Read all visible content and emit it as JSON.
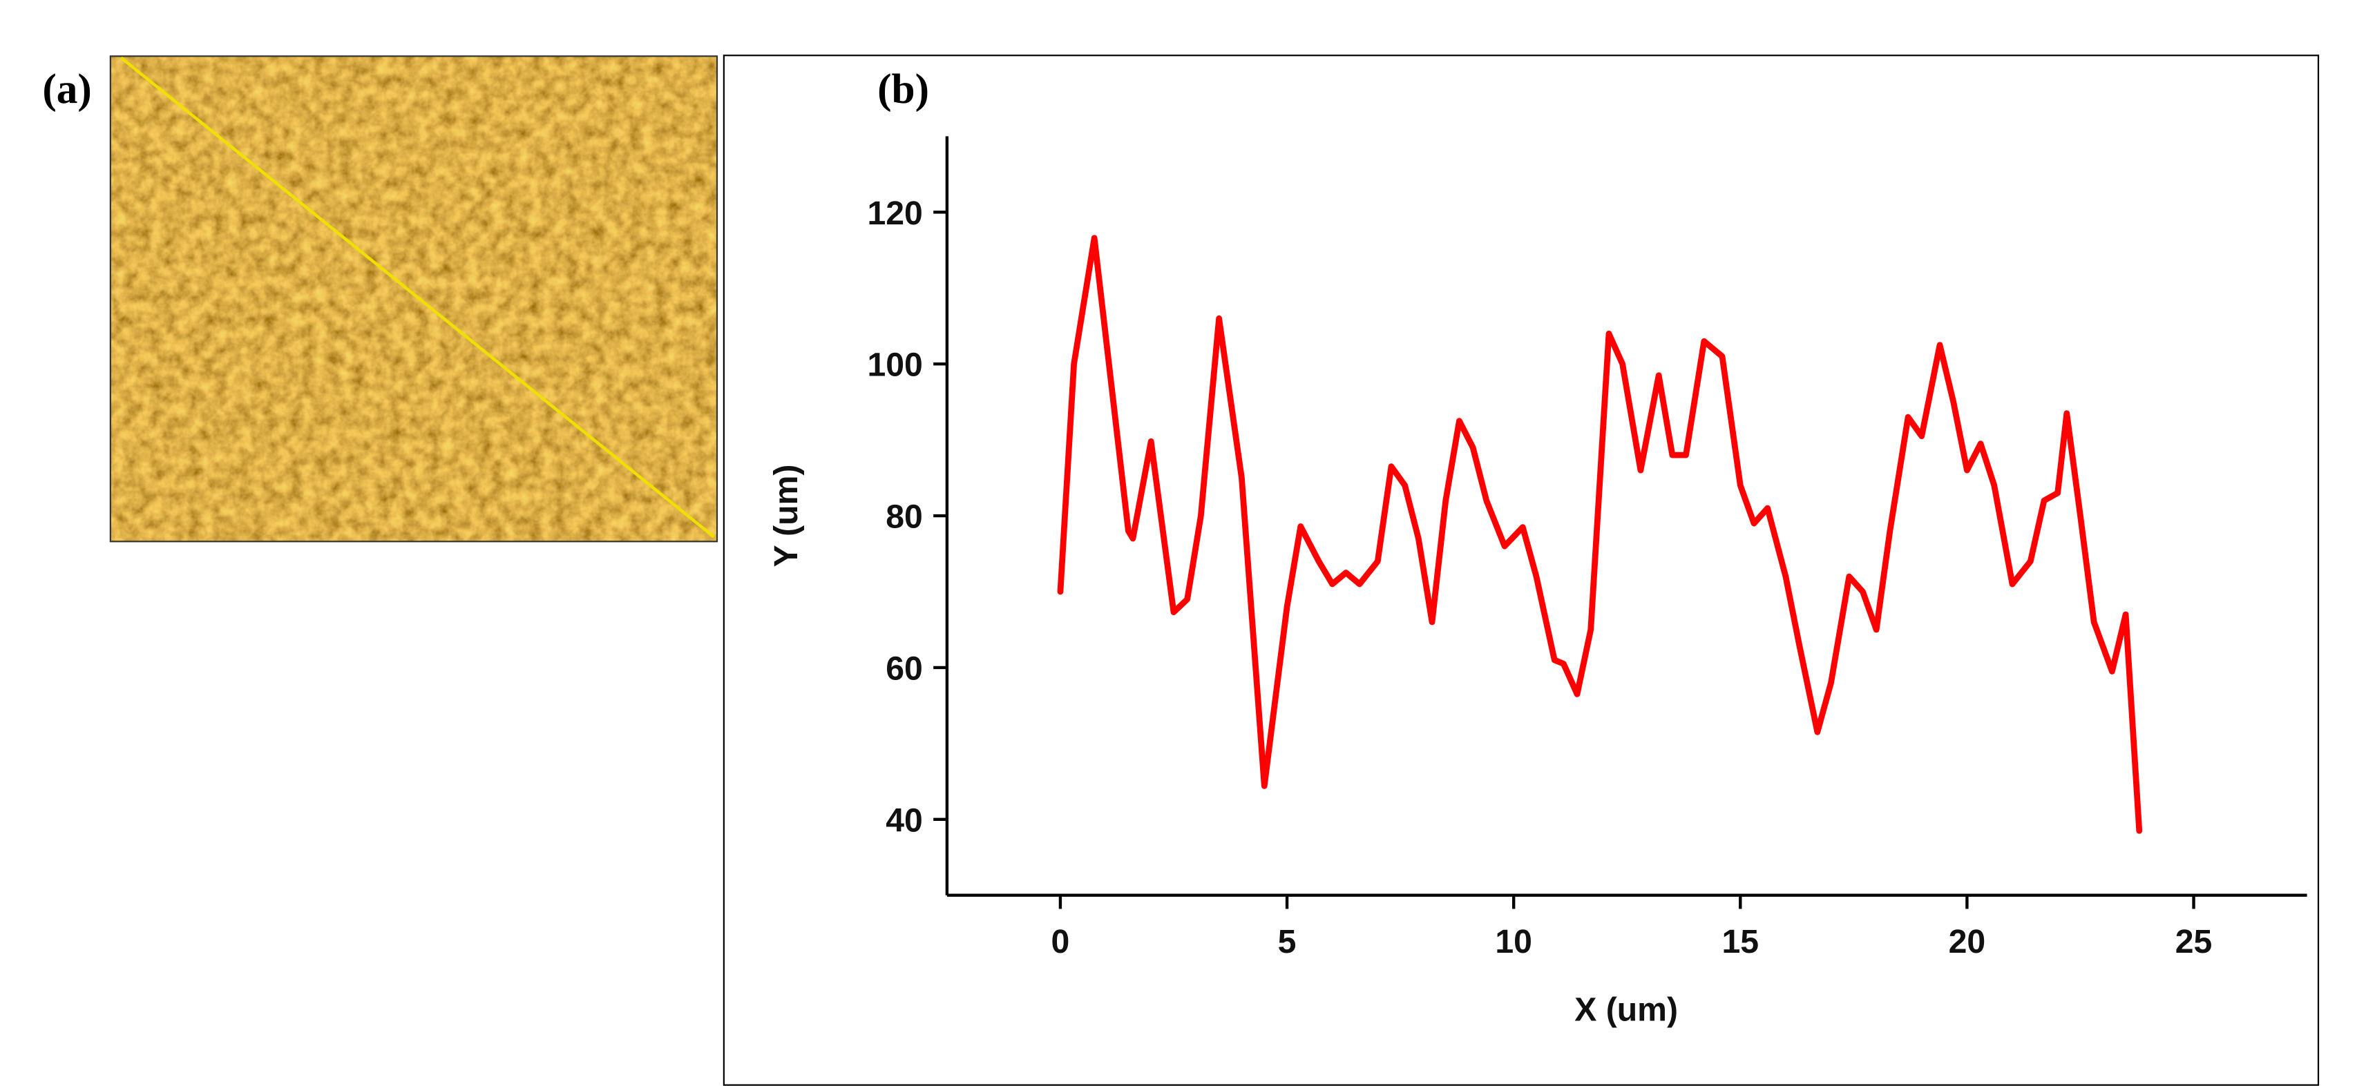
{
  "panel_a": {
    "label": "(a)"
  },
  "chart_data": {
    "type": "line",
    "panel_label": "(b)",
    "x_label": "X (um)",
    "y_label": "Y (um)",
    "x": [
      0,
      0.3,
      0.75,
      1.5,
      1.6,
      2,
      2.5,
      2.8,
      3.1,
      3.5,
      4,
      4.5,
      5,
      5.3,
      5.7,
      6,
      6.3,
      6.6,
      7,
      7.3,
      7.6,
      7.9,
      8.2,
      8.5,
      8.8,
      9.1,
      9.4,
      9.8,
      10.2,
      10.5,
      10.9,
      11.1,
      11.4,
      11.7,
      12.1,
      12.4,
      12.8,
      13.2,
      13.5,
      13.8,
      14.2,
      14.6,
      15,
      15.3,
      15.6,
      16,
      16.3,
      16.7,
      17,
      17.4,
      17.7,
      18,
      18.3,
      18.7,
      19,
      19.4,
      19.7,
      20,
      20.3,
      20.6,
      21,
      21.4,
      21.7,
      22,
      22.2,
      22.5,
      22.8,
      23.2,
      23.5,
      23.8
    ],
    "values": [
      70,
      100,
      116.6,
      78,
      77,
      89.8,
      67.3,
      69,
      80,
      106,
      85,
      44.4,
      68,
      78.6,
      74,
      71,
      72.5,
      71,
      74,
      86.5,
      84,
      77,
      66,
      82,
      92.5,
      89,
      82,
      76,
      78.5,
      72,
      61,
      60.5,
      56.5,
      65,
      104,
      100,
      86,
      98.5,
      88,
      88,
      103,
      101,
      84,
      79,
      81,
      72,
      63,
      51.5,
      58,
      72,
      70,
      65,
      78,
      93,
      90.5,
      102.5,
      95,
      86,
      89.5,
      84,
      71,
      74,
      82,
      83,
      93.5,
      80,
      66,
      59.5,
      67,
      38.5
    ],
    "color": "#ff0000",
    "xlim": [
      -2.5,
      27.5
    ],
    "xticks": [
      0,
      5,
      10,
      15,
      20,
      25
    ],
    "ylim": [
      30,
      130
    ],
    "yticks": [
      40,
      60,
      80,
      100,
      120
    ]
  }
}
